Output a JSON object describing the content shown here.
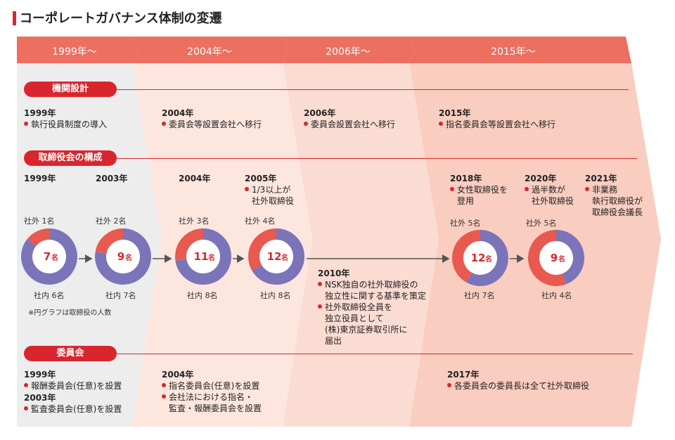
{
  "title": "コーポレートガバナンス体制の変遷",
  "periods": [
    "1999年～",
    "2004年～",
    "2006年～",
    "2015年～"
  ],
  "sections": {
    "org": "機関設計",
    "board": "取締役会の構成",
    "committee": "委員会"
  },
  "org_events": [
    {
      "year": "1999年",
      "text": "執行役員制度の導入"
    },
    {
      "year": "2004年",
      "text": "委員会等設置会社へ移行"
    },
    {
      "year": "2006年",
      "text": "委員会設置会社へ移行"
    },
    {
      "year": "2015年",
      "text": "指名委員会等設置会社へ移行"
    }
  ],
  "board_years": {
    "y1999": "1999年",
    "y2003": "2003年",
    "y2004": "2004年",
    "y2005": "2005年",
    "y2018": "2018年",
    "y2020": "2020年",
    "y2021": "2021年"
  },
  "board_notes": {
    "n2005_l1": "1/3以上が",
    "n2005_l2": "社外取締役",
    "n2018_l1": "女性取締役を",
    "n2018_l2": "登用",
    "n2020_l1": "過半数が",
    "n2020_l2": "社外取締役",
    "n2021_l1": "非業務",
    "n2021_l2": "執行取締役が",
    "n2021_l3": "取締役会議長"
  },
  "donuts": [
    {
      "outside": 1,
      "inside": 6,
      "total": 7,
      "outside_label": "社外 1名",
      "inside_label": "社内 6名",
      "total_label": "7",
      "unit": "名"
    },
    {
      "outside": 2,
      "inside": 7,
      "total": 9,
      "outside_label": "社外 2名",
      "inside_label": "社内 7名",
      "total_label": "9",
      "unit": "名"
    },
    {
      "outside": 3,
      "inside": 8,
      "total": 11,
      "outside_label": "社外 3名",
      "inside_label": "社内 8名",
      "total_label": "11",
      "unit": "名"
    },
    {
      "outside": 4,
      "inside": 8,
      "total": 12,
      "outside_label": "社外 4名",
      "inside_label": "社内 8名",
      "total_label": "12",
      "unit": "名"
    },
    {
      "outside": 5,
      "inside": 7,
      "total": 12,
      "outside_label": "社外 5名",
      "inside_label": "社内 7名",
      "total_label": "12",
      "unit": "名"
    },
    {
      "outside": 5,
      "inside": 4,
      "total": 9,
      "outside_label": "社外 5名",
      "inside_label": "社内 4名",
      "total_label": "9",
      "unit": "名"
    }
  ],
  "donut_note": "※円グラフは取締役の人数",
  "event2010": {
    "year": "2010年",
    "b1_l1": "NSK独自の社外取締役の",
    "b1_l2": "独立性に関する基準を策定",
    "b2_l1": "社外取締役全員を",
    "b2_l2": "独立役員として",
    "b2_l3": "(株)東京証券取引所に",
    "b2_l4": "届出"
  },
  "committee_events": {
    "y1999": "1999年",
    "t1999": "報酬委員会(任意)を設置",
    "y2003": "2003年",
    "t2003": "監査委員会(任意)を設置",
    "y2004": "2004年",
    "t2004a": "指名委員会(任意)を設置",
    "t2004b_l1": "会社法における指名・",
    "t2004b_l2": "監査・報酬委員会を設置",
    "y2017": "2017年",
    "t2017": "各委員会の委員長は全て社外取締役"
  },
  "colors": {
    "accent": "#d9262e",
    "header": "#ec6f5f",
    "outside": "#e8594f",
    "inside": "#7c74b8",
    "band1": "#ededed",
    "band2": "#fde6de",
    "band3": "#fbdcd2",
    "band4": "#f9cdbf"
  }
}
